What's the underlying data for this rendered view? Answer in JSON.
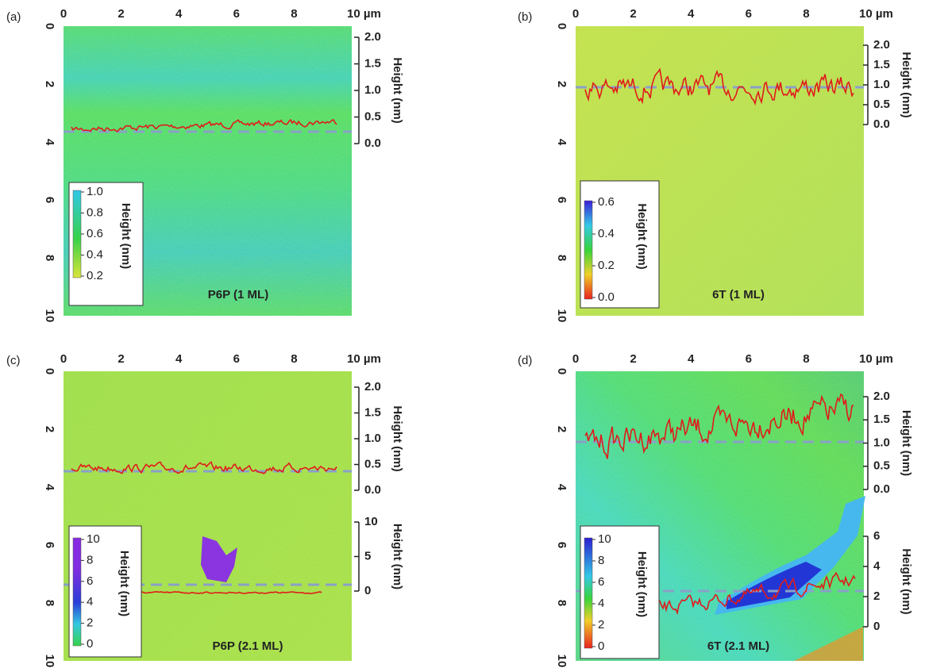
{
  "panels": [
    {
      "label": "(a)",
      "title": "P6P (1 ML)",
      "x_ticks": [
        "0",
        "2",
        "4",
        "6",
        "8",
        "10 µm"
      ],
      "y_ticks": [
        "0",
        "2",
        "4",
        "6",
        "8",
        "10"
      ],
      "height_axes": [
        {
          "label": "Height (nm)",
          "ticks": [
            "2.0",
            "1.5",
            "1.0",
            "0.5",
            "0.0"
          ]
        }
      ],
      "colorbar": {
        "label": "Height (nm)",
        "ticks": [
          "1.0",
          "0.8",
          "0.6",
          "0.4",
          "0.2"
        ]
      }
    },
    {
      "label": "(b)",
      "title": "6T (1 ML)",
      "x_ticks": [
        "0",
        "2",
        "4",
        "6",
        "8",
        "10 µm"
      ],
      "y_ticks": [
        "0",
        "2",
        "4",
        "6",
        "8",
        "10"
      ],
      "height_axes": [
        {
          "label": "Height (nm)",
          "ticks": [
            "2.0",
            "1.5",
            "1.0",
            "0.5",
            "0.0"
          ]
        }
      ],
      "colorbar": {
        "label": "Height (nm)",
        "ticks": [
          "0.6",
          "0.4",
          "0.2",
          "0.0"
        ]
      }
    },
    {
      "label": "(c)",
      "title": "P6P (2.1 ML)",
      "x_ticks": [
        "0",
        "2",
        "4",
        "6",
        "8",
        "10 µm"
      ],
      "y_ticks": [
        "0",
        "2",
        "4",
        "6",
        "8",
        "10"
      ],
      "height_axes": [
        {
          "label": "Height (nm)",
          "ticks": [
            "2.0",
            "1.5",
            "1.0",
            "0.5",
            "0.0"
          ]
        },
        {
          "label": "Height (nm)",
          "ticks": [
            "10",
            "5",
            "0"
          ]
        }
      ],
      "colorbar": {
        "label": "Height (nm)",
        "ticks": [
          "10",
          "8",
          "6",
          "4",
          "2",
          "0"
        ]
      }
    },
    {
      "label": "(d)",
      "title": "6T (2.1 ML)",
      "x_ticks": [
        "0",
        "2",
        "4",
        "6",
        "8",
        "10 µm"
      ],
      "y_ticks": [
        "0",
        "2",
        "4",
        "6",
        "8",
        "10"
      ],
      "height_axes": [
        {
          "label": "Height (nm)",
          "ticks": [
            "2.0",
            "1.5",
            "1.0",
            "0.5",
            "0.0"
          ]
        },
        {
          "label": "Height (nm)",
          "ticks": [
            "6",
            "4",
            "2",
            "0"
          ]
        }
      ],
      "colorbar": {
        "label": "Height (nm)",
        "ticks": [
          "10",
          "8",
          "6",
          "4",
          "2",
          "0"
        ]
      }
    }
  ]
}
